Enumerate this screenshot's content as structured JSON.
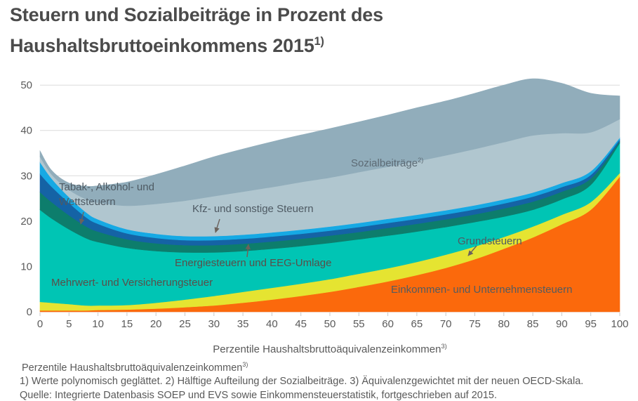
{
  "title": {
    "line1": "Steuern und Sozialbeiträge in Prozent des",
    "line2": "Haushaltsbruttoeinkommens 2015",
    "footnote_marker": "1)"
  },
  "chart_data": {
    "type": "area",
    "stacked": true,
    "title": "Steuern und Sozialbeiträge in Prozent des Haushaltsbruttoeinkommens 2015",
    "xlabel": "Perzentile Haushaltsbruttoäquivalenzeinkommen",
    "xlabel_sup": "3)",
    "ylabel": "",
    "xlim": [
      0,
      100
    ],
    "ylim": [
      0,
      52
    ],
    "grid": "horizontal",
    "x_ticks": [
      0,
      5,
      10,
      15,
      20,
      25,
      30,
      35,
      40,
      45,
      50,
      55,
      60,
      65,
      70,
      75,
      80,
      85,
      90,
      95,
      100
    ],
    "y_ticks": [
      0,
      10,
      20,
      30,
      40,
      50
    ],
    "x": [
      0,
      2,
      5,
      8,
      10,
      15,
      20,
      25,
      30,
      35,
      40,
      45,
      50,
      55,
      60,
      65,
      70,
      75,
      80,
      85,
      90,
      95,
      100
    ],
    "series": [
      {
        "id": "einkommen",
        "name": "Einkommen- und Unternehmensteuern",
        "color": "#fb690c",
        "values": [
          0.3,
          0.3,
          0.3,
          0.3,
          0.4,
          0.5,
          0.7,
          1.0,
          1.4,
          2.0,
          2.7,
          3.5,
          4.4,
          5.5,
          6.7,
          8.1,
          9.7,
          11.6,
          13.9,
          16.4,
          19.3,
          22.5,
          29.8
        ]
      },
      {
        "id": "grundsteuern",
        "name": "Grundsteuern",
        "color": "#e5e431",
        "values": [
          1.9,
          1.7,
          1.4,
          1.1,
          1.0,
          1.0,
          1.3,
          1.7,
          2.1,
          2.4,
          2.6,
          2.7,
          2.8,
          2.9,
          2.9,
          2.9,
          2.9,
          2.8,
          2.6,
          2.4,
          2.1,
          1.7,
          0.8
        ]
      },
      {
        "id": "mehrwert",
        "name": "Mehrwert- und Versicherungsteuer",
        "color": "#00c5b4",
        "values": [
          20.3,
          18.6,
          16.5,
          14.8,
          14.0,
          12.6,
          11.4,
          10.4,
          9.6,
          9.0,
          8.6,
          8.3,
          8.0,
          7.6,
          7.2,
          6.7,
          6.1,
          5.4,
          4.5,
          3.7,
          3.4,
          3.8,
          6.6
        ]
      },
      {
        "id": "energie",
        "name": "Energiesteuern und EEG-Umlage",
        "color": "#0d7d6c",
        "values": [
          3.9,
          3.6,
          3.1,
          2.6,
          2.3,
          1.9,
          1.7,
          1.6,
          1.6,
          1.6,
          1.6,
          1.6,
          1.6,
          1.6,
          1.7,
          1.7,
          1.7,
          1.7,
          1.8,
          1.8,
          1.7,
          1.4,
          0.4
        ]
      },
      {
        "id": "tabak",
        "name": "Tabak-, Alkohol- und Wettsteuern",
        "color": "#1563a5",
        "values": [
          4.0,
          3.4,
          2.7,
          2.0,
          1.7,
          1.3,
          1.2,
          1.1,
          1.1,
          1.1,
          1.1,
          1.1,
          1.1,
          1.1,
          1.1,
          1.1,
          1.1,
          1.1,
          1.1,
          1.1,
          1.0,
          0.8,
          0.4
        ]
      },
      {
        "id": "kfz",
        "name": "Kfz- und sonstige Steuern",
        "color": "#16a9e4",
        "values": [
          2.6,
          1.8,
          1.3,
          1.1,
          1.0,
          0.9,
          0.9,
          0.9,
          0.9,
          0.9,
          0.9,
          0.9,
          0.9,
          0.9,
          0.9,
          0.9,
          0.9,
          0.9,
          0.9,
          0.9,
          0.9,
          0.8,
          0.4
        ]
      },
      {
        "id": "sozial-1",
        "name": "Sozialbeiträge",
        "half": 1,
        "color": "#b0c6cf",
        "values": [
          1.2,
          0.9,
          1.6,
          2.9,
          3.7,
          5.2,
          6.6,
          7.8,
          8.8,
          9.5,
          10.0,
          10.5,
          10.8,
          11.2,
          11.5,
          11.8,
          12.1,
          12.4,
          12.6,
          12.6,
          11.0,
          8.6,
          4.1
        ]
      },
      {
        "id": "sozial-2",
        "name": "Sozialbeiträge",
        "half": 2,
        "color": "#91adbb",
        "values": [
          1.3,
          0.9,
          1.5,
          2.9,
          3.7,
          5.2,
          6.5,
          7.7,
          8.7,
          9.4,
          10.0,
          10.4,
          10.8,
          11.1,
          11.4,
          11.8,
          12.0,
          12.3,
          12.6,
          12.5,
          11.0,
          8.6,
          5.1
        ]
      }
    ]
  },
  "annotations": [
    {
      "id": "sozialbeitraege",
      "text": "Sozialbeiträge",
      "sup": "2)",
      "color": "#5d6b75"
    },
    {
      "id": "tabak",
      "text": "Tabak-, Alkohol- und Wettsteuern",
      "color": "#4e5a63"
    },
    {
      "id": "kfz",
      "text": "Kfz- und sonstige Steuern",
      "color": "#4e5a63"
    },
    {
      "id": "energie",
      "text": "Energiesteuern und EEG-Umlage",
      "color": "#5a4e49"
    },
    {
      "id": "mehrwert",
      "text": "Mehrwert- und Versicherungsteuer",
      "color": "#5a4e49"
    },
    {
      "id": "grund",
      "text": "Grundsteuern",
      "color": "#4e5a63"
    },
    {
      "id": "einkommen",
      "text": "Einkommen- und Unternehmensteuern",
      "color": "#545c60"
    }
  ],
  "axis": {
    "x_title": "Perzentile Haushaltsbruttoäquivalenzeinkommen",
    "x_title_sup": "3)"
  },
  "footnotes": {
    "line1": "Perzentile Haushaltsbruttoäquivalenzeinkommen",
    "line1_sup": "3)",
    "line2": "1) Werte polynomisch geglättet. 2) Hälftige Aufteilung der Sozialbeiträge. 3) Äquivalenzgewichtet mit der neuen OECD-Skala.",
    "line3": "Quelle: Integrierte Datenbasis SOEP und EVS sowie Einkommensteuerstatistik, fortgeschrieben auf 2015."
  },
  "colors": {
    "title_text": "#4b4b4b",
    "axis_text": "#5a5a5a",
    "gridline": "#dcdcdc",
    "arrow": "#6b625c"
  }
}
